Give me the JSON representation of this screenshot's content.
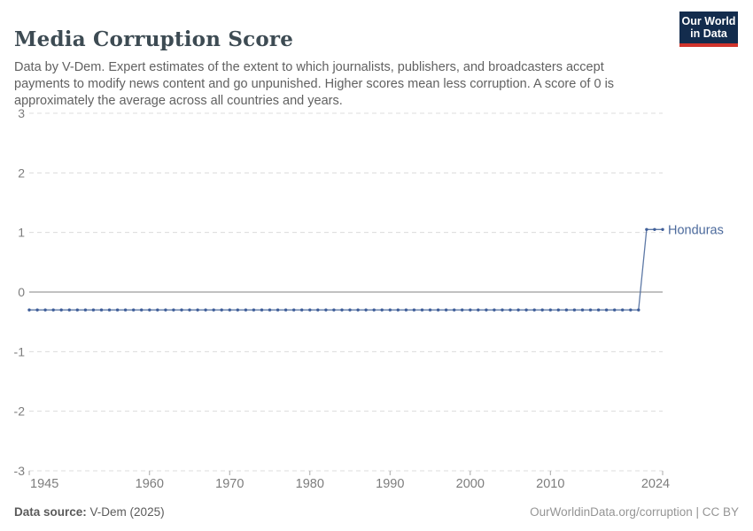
{
  "header": {
    "title": "Media Corruption Score",
    "subtitle": "Data by V-Dem. Expert estimates of the extent to which journalists, publishers, and broadcasters accept payments to modify news content and go unpunished. Higher scores mean less corruption. A score of 0 is approximately the average across all countries and years.",
    "logo": {
      "line1": "Our World",
      "line2": "in Data",
      "bg_color": "#132c4d",
      "bar_color": "#d0342c"
    }
  },
  "chart_data": {
    "type": "line",
    "title": "Media Corruption Score",
    "xlabel": "",
    "ylabel": "",
    "xlim": [
      1945,
      2024
    ],
    "ylim": [
      -3,
      3
    ],
    "x_ticks": [
      1945,
      1960,
      1970,
      1980,
      1990,
      2000,
      2010,
      2024
    ],
    "y_ticks": [
      3,
      2,
      1,
      0,
      -1,
      -2,
      -3
    ],
    "grid": "horizontal-dashed",
    "legend_position": "end-of-line-label",
    "series": [
      {
        "name": "Honduras",
        "color": "#4c6a9c",
        "dot_color": "#3f5e99",
        "runs": [
          {
            "start_year": 1945,
            "end_year": 2021,
            "value": -0.3
          },
          {
            "start_year": 2022,
            "end_year": 2024,
            "value": 1.05
          }
        ]
      }
    ],
    "colors": {
      "gridline": "#dcdcdc",
      "zero_line": "#9c9c9c",
      "tick_label": "#7d7d7d",
      "tick_mark": "#a8a8a8"
    }
  },
  "footer": {
    "source_label": "Data source:",
    "source_value": "V-Dem (2025)",
    "link": "OurWorldinData.org/corruption | CC BY"
  }
}
